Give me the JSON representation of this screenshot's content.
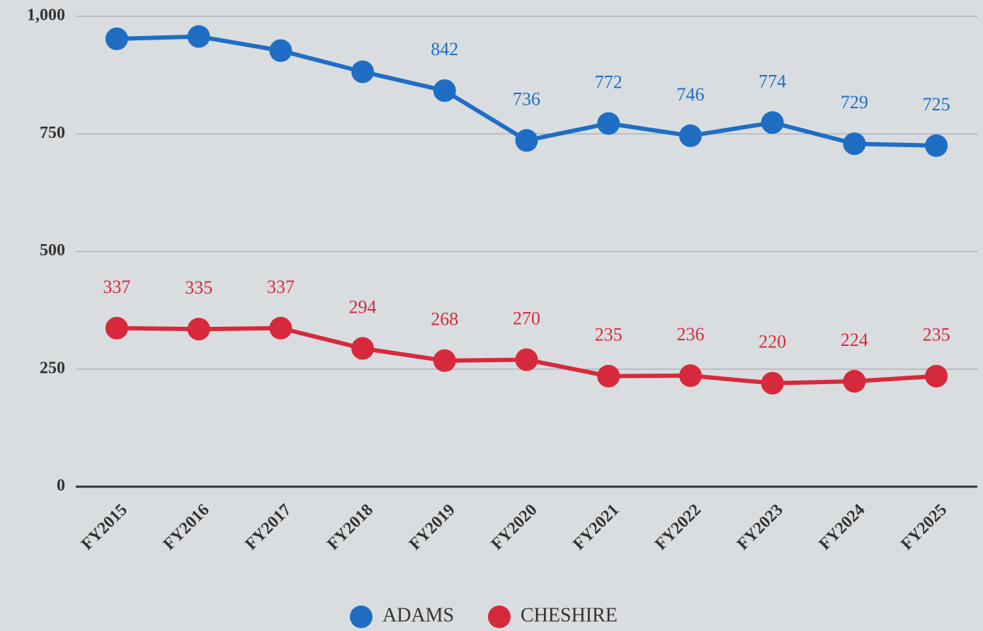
{
  "chart_data": {
    "type": "line",
    "categories": [
      "FY2015",
      "FY2016",
      "FY2017",
      "FY2018",
      "FY2019",
      "FY2020",
      "FY2021",
      "FY2022",
      "FY2023",
      "FY2024",
      "FY2025"
    ],
    "series": [
      {
        "name": "ADAMS",
        "color": "#1f6ec4",
        "values": [
          952,
          957,
          927,
          882,
          842,
          736,
          772,
          746,
          774,
          729,
          725
        ],
        "value_labels": [
          null,
          null,
          null,
          null,
          "842",
          "736",
          "772",
          "746",
          "774",
          "729",
          "725"
        ]
      },
      {
        "name": "CHESHIRE",
        "color": "#d62a3c",
        "values": [
          337,
          335,
          337,
          294,
          268,
          270,
          235,
          236,
          220,
          224,
          235
        ],
        "value_labels": [
          "337",
          "335",
          "337",
          "294",
          "268",
          "270",
          "235",
          "236",
          "220",
          "224",
          "235"
        ]
      }
    ],
    "ylim": [
      0,
      1000
    ],
    "yticks": [
      0,
      250,
      500,
      750,
      {
        "value": 1000,
        "label": "1,000"
      }
    ],
    "grid": true,
    "legend": "bottom"
  }
}
